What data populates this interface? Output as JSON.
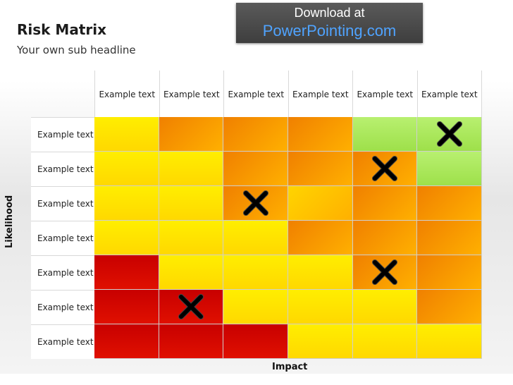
{
  "title": "Risk Matrix",
  "subtitle": "Your own sub headline",
  "banner": {
    "line1": "Download at",
    "line2": "PowerPointing.com"
  },
  "axes": {
    "x_label": "Impact",
    "y_label": "Likelihood"
  },
  "columns": [
    "Example text",
    "Example text",
    "Example text",
    "Example text",
    "Example text",
    "Example text"
  ],
  "rows": [
    "Example text",
    "Example text",
    "Example text",
    "Example text",
    "Example text",
    "Example text",
    "Example text"
  ],
  "colors": {
    "yellow": "#ffe600",
    "orange": "#f39c00",
    "red": "#d00000",
    "green": "#aee85c"
  },
  "cells": [
    [
      "yellow",
      "orange",
      "orange",
      "orange",
      "green",
      "green"
    ],
    [
      "yellow",
      "yellow",
      "orange",
      "orange",
      "orange",
      "green"
    ],
    [
      "yellow",
      "yellow",
      "orange",
      "orange-light",
      "orange",
      "orange"
    ],
    [
      "yellow",
      "yellow",
      "yellow",
      "orange",
      "orange",
      "orange"
    ],
    [
      "red",
      "yellow",
      "yellow",
      "yellow",
      "orange",
      "orange"
    ],
    [
      "red",
      "red",
      "yellow",
      "yellow",
      "yellow",
      "orange"
    ],
    [
      "red",
      "red",
      "red",
      "yellow",
      "yellow",
      "yellow"
    ]
  ],
  "marks": [
    {
      "row": 0,
      "col": 5,
      "icon": "x-mark-icon"
    },
    {
      "row": 1,
      "col": 4,
      "icon": "x-mark-icon"
    },
    {
      "row": 2,
      "col": 2,
      "icon": "x-mark-icon"
    },
    {
      "row": 4,
      "col": 4,
      "icon": "x-mark-icon"
    },
    {
      "row": 5,
      "col": 1,
      "icon": "x-mark-icon"
    }
  ]
}
